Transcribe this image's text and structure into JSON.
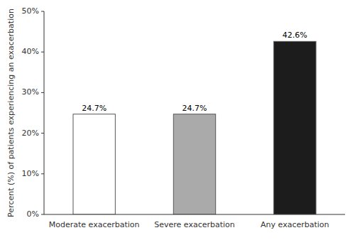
{
  "chart_data": {
    "type": "bar",
    "categories": [
      "Moderate exacerbation",
      "Severe exacerbation",
      "Any exacerbation"
    ],
    "values": [
      24.7,
      24.7,
      42.6
    ],
    "value_labels": [
      "24.7%",
      "24.7%",
      "42.6%"
    ],
    "data_labels": true,
    "colors": [
      "#ffffff",
      "#aaaaaa",
      "#1c1c1c"
    ],
    "ylabel": "Percent (%) of patients experiencing an exacerbation",
    "ylim": [
      0,
      50
    ],
    "yticks": [
      {
        "value": 0,
        "label": "0%"
      },
      {
        "value": 10,
        "label": "10%"
      },
      {
        "value": 20,
        "label": "20%"
      },
      {
        "value": 30,
        "label": "30%"
      },
      {
        "value": 40,
        "label": "40%"
      },
      {
        "value": 50,
        "label": "50%"
      }
    ],
    "grid": false
  }
}
